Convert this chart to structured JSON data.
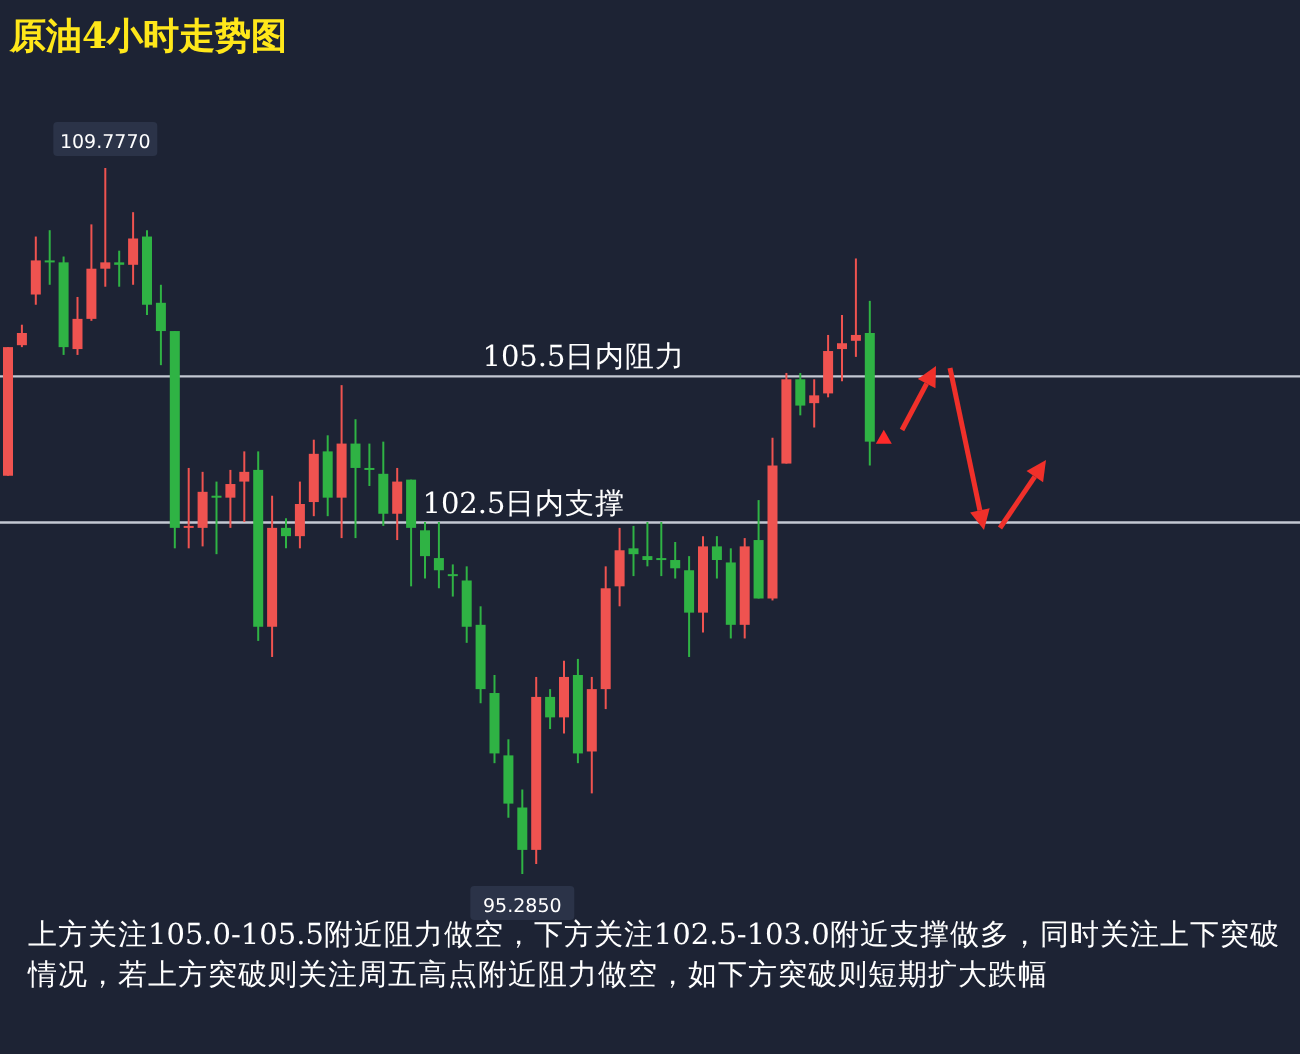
{
  "chart_data": {
    "type": "candlestick",
    "title": "原油4小时走势图",
    "categories": [
      null,
      null,
      null,
      null,
      null,
      null,
      null,
      null,
      null,
      null,
      null,
      null,
      null,
      null,
      null,
      null,
      null,
      null,
      null,
      null,
      null,
      null,
      null,
      null,
      null,
      null,
      null,
      null,
      null,
      null,
      null,
      null,
      null,
      null,
      null,
      null,
      null,
      null,
      null,
      null,
      null,
      null,
      null,
      null,
      null,
      null,
      null,
      null,
      null,
      null,
      null,
      null,
      null,
      null,
      null,
      null,
      null,
      null,
      null,
      null,
      null,
      null,
      null
    ],
    "ohlc": [
      [
        103.46,
        106.1,
        103.46,
        106.1
      ],
      [
        106.14,
        106.56,
        106.1,
        106.39
      ],
      [
        107.18,
        108.37,
        106.97,
        107.88
      ],
      [
        107.88,
        108.5,
        107.38,
        107.84
      ],
      [
        107.84,
        107.96,
        105.94,
        106.1
      ],
      [
        106.06,
        107.13,
        105.94,
        106.68
      ],
      [
        106.68,
        108.62,
        106.64,
        107.71
      ],
      [
        107.71,
        109.777,
        107.34,
        107.84
      ],
      [
        107.84,
        108.08,
        107.34,
        107.79
      ],
      [
        107.79,
        108.87,
        107.38,
        108.33
      ],
      [
        108.37,
        108.5,
        106.76,
        106.97
      ],
      [
        107.01,
        107.38,
        105.73,
        106.43
      ],
      [
        106.43,
        106.43,
        101.97,
        102.39
      ],
      [
        102.39,
        103.62,
        101.97,
        102.43
      ],
      [
        102.39,
        103.54,
        102.01,
        103.13
      ],
      [
        103.05,
        103.34,
        101.85,
        103.01
      ],
      [
        103.01,
        103.58,
        102.39,
        103.29
      ],
      [
        103.34,
        103.96,
        102.51,
        103.54
      ],
      [
        103.58,
        103.96,
        100.07,
        100.36
      ],
      [
        100.36,
        103.05,
        99.74,
        102.39
      ],
      [
        102.39,
        102.59,
        101.97,
        102.22
      ],
      [
        102.22,
        103.34,
        101.97,
        102.88
      ],
      [
        102.92,
        104.2,
        102.63,
        103.91
      ],
      [
        103.96,
        104.29,
        102.63,
        103.01
      ],
      [
        103.01,
        105.32,
        102.18,
        104.12
      ],
      [
        104.12,
        104.62,
        102.18,
        103.62
      ],
      [
        103.62,
        104.12,
        103.25,
        103.58
      ],
      [
        103.5,
        104.16,
        102.43,
        102.68
      ],
      [
        102.68,
        103.62,
        102.14,
        103.34
      ],
      [
        103.38,
        103.38,
        101.19,
        102.39
      ],
      [
        102.34,
        102.51,
        101.35,
        101.81
      ],
      [
        101.77,
        102.51,
        101.15,
        101.52
      ],
      [
        101.44,
        101.64,
        100.98,
        101.4
      ],
      [
        101.31,
        101.6,
        100.03,
        100.36
      ],
      [
        100.4,
        100.78,
        98.79,
        99.08
      ],
      [
        99.0,
        99.37,
        97.56,
        97.76
      ],
      [
        97.72,
        98.05,
        96.44,
        96.73
      ],
      [
        96.65,
        97.02,
        95.285,
        95.78
      ],
      [
        95.78,
        99.33,
        95.49,
        98.92
      ],
      [
        98.92,
        99.08,
        98.26,
        98.5
      ],
      [
        98.5,
        99.66,
        98.17,
        99.33
      ],
      [
        99.37,
        99.7,
        97.56,
        97.76
      ],
      [
        97.8,
        99.33,
        96.94,
        99.08
      ],
      [
        99.08,
        101.6,
        98.67,
        101.15
      ],
      [
        101.19,
        102.39,
        100.78,
        101.93
      ],
      [
        101.97,
        102.43,
        101.4,
        101.85
      ],
      [
        101.81,
        102.51,
        101.6,
        101.73
      ],
      [
        101.77,
        102.51,
        101.4,
        101.73
      ],
      [
        101.73,
        102.1,
        101.35,
        101.56
      ],
      [
        101.52,
        101.81,
        99.74,
        100.65
      ],
      [
        100.65,
        102.22,
        100.24,
        102.01
      ],
      [
        102.01,
        102.22,
        101.35,
        101.73
      ],
      [
        101.68,
        101.97,
        100.12,
        100.4
      ],
      [
        100.4,
        102.18,
        100.12,
        102.01
      ],
      [
        102.14,
        102.96,
        100.94,
        100.94
      ],
      [
        100.94,
        104.24,
        100.9,
        103.67
      ],
      [
        103.71,
        105.57,
        103.71,
        105.44
      ],
      [
        105.44,
        105.57,
        104.7,
        104.9
      ],
      [
        104.95,
        105.44,
        104.45,
        105.11
      ],
      [
        105.15,
        106.35,
        105.07,
        106.02
      ],
      [
        106.06,
        106.76,
        105.4,
        106.18
      ],
      [
        106.23,
        107.92,
        105.9,
        106.35
      ],
      [
        106.39,
        107.05,
        103.67,
        104.16
      ]
    ],
    "colors": [
      "#ef5350",
      "#ef5350",
      "#ef5350",
      "#2fb344",
      "#2fb344",
      "#ef5350",
      "#ef5350",
      "#ef5350",
      "#2fb344",
      "#ef5350",
      "#2fb344",
      "#2fb344",
      "#2fb344",
      "#ef5350",
      "#ef5350",
      "#2fb344",
      "#ef5350",
      "#ef5350",
      "#2fb344",
      "#ef5350",
      "#2fb344",
      "#ef5350",
      "#ef5350",
      "#2fb344",
      "#ef5350",
      "#2fb344",
      "#2fb344",
      "#2fb344",
      "#ef5350",
      "#2fb344",
      "#2fb344",
      "#2fb344",
      "#2fb344",
      "#2fb344",
      "#2fb344",
      "#2fb344",
      "#2fb344",
      "#2fb344",
      "#ef5350",
      "#2fb344",
      "#ef5350",
      "#2fb344",
      "#ef5350",
      "#ef5350",
      "#ef5350",
      "#2fb344",
      "#2fb344",
      "#2fb344",
      "#2fb344",
      "#2fb344",
      "#ef5350",
      "#2fb344",
      "#2fb344",
      "#ef5350",
      "#2fb344",
      "#ef5350",
      "#ef5350",
      "#2fb344",
      "#ef5350",
      "#ef5350",
      "#ef5350",
      "#ef5350",
      "#2fb344"
    ],
    "ref_lines": [
      {
        "axis": "y",
        "value": 105.5,
        "label": "105.5日内阻力",
        "color": "#c3c8d2"
      },
      {
        "axis": "y",
        "value": 102.5,
        "label": "102.5日内支撑",
        "color": "#c3c8d2"
      }
    ],
    "annotations": [
      {
        "text": "109.7770",
        "y": 109.777
      },
      {
        "text": "95.2850",
        "y": 95.285
      },
      "上方关注105.0-105.5附近阻力做空，下方关注102.5-103.0附近支撑做多，同时关注上下突破情况，若上方突破则关注周五高点附近阻力做空，如下方突破则短期扩大跌幅"
    ]
  }
}
